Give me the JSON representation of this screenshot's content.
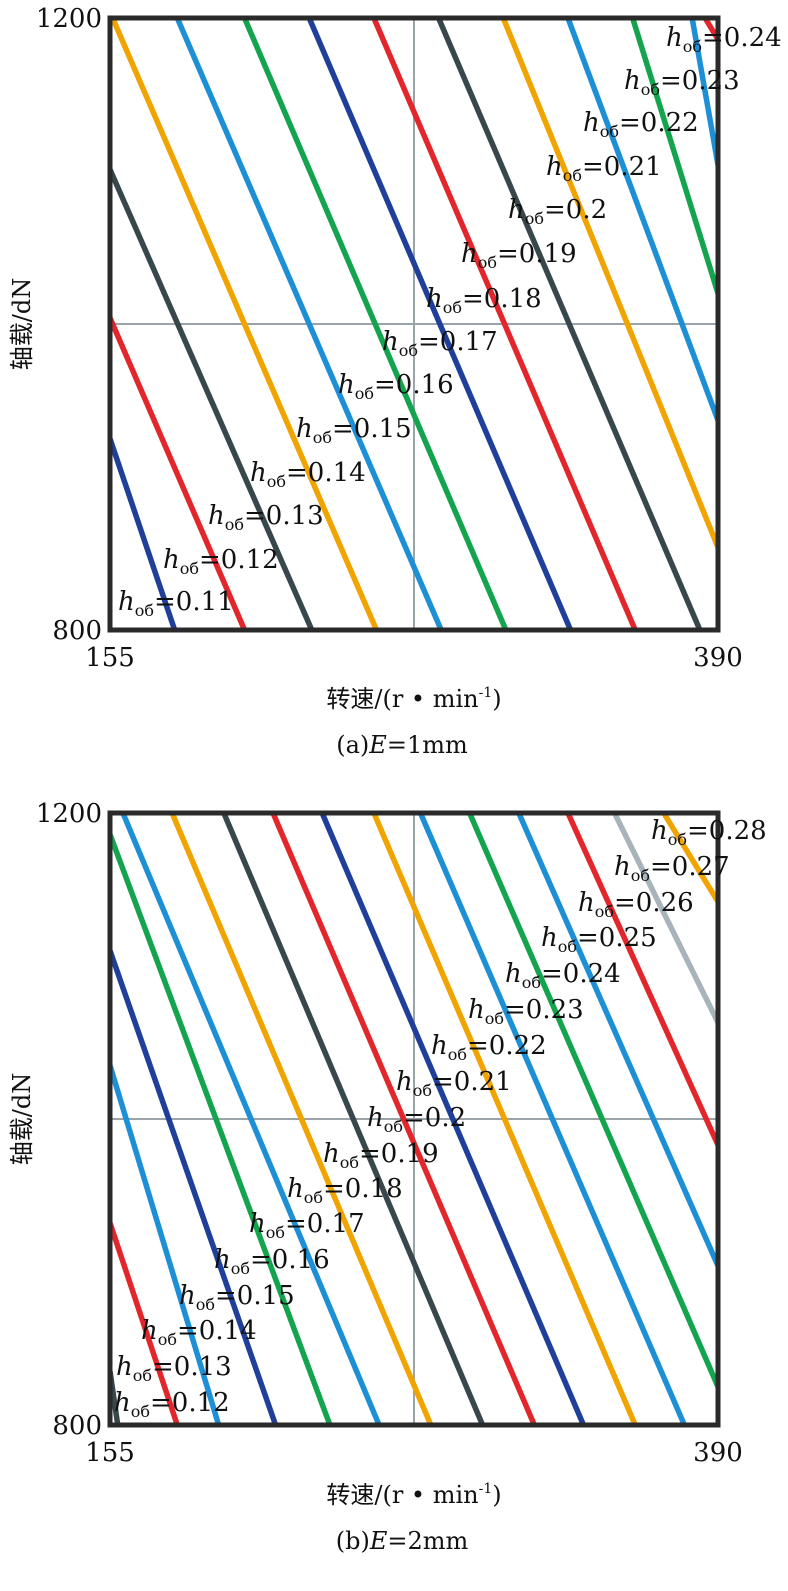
{
  "colors": {
    "frame": "#2a2a2a",
    "grid": "#9aa3a8",
    "blue": "#1f3f9b",
    "cyan": "#1d8fd6",
    "green": "#14a44d",
    "red": "#e3262b",
    "orange": "#f1a300",
    "dark": "#38474c",
    "silver": "#a8b4bb"
  },
  "chart_data": [
    {
      "type": "line",
      "subplot": "(a)",
      "caption_prefix": "(a)",
      "caption_var": "E",
      "caption_value": "=1mm",
      "xlabel": "转速/(r • min",
      "xlabel_sup": "-1",
      "xlabel_end": ")",
      "ylabel": "轴载/dN",
      "xlim": [
        155,
        390
      ],
      "ylim": [
        800,
        1200
      ],
      "xticks": [
        "155",
        "390"
      ],
      "yticks": [
        "800",
        "1200"
      ],
      "grid": true,
      "label_prefix": "h",
      "label_sub": "об",
      "series": [
        {
          "name": "=0.11",
          "color": "blue",
          "x": [
            155,
            180
          ],
          "y": [
            925,
            800
          ]
        },
        {
          "name": "=0.12",
          "color": "red",
          "x": [
            155,
            207
          ],
          "y": [
            1004,
            800
          ]
        },
        {
          "name": "=0.13",
          "color": "dark",
          "x": [
            155,
            233
          ],
          "y": [
            1101,
            800
          ]
        },
        {
          "name": "=0.14",
          "color": "orange",
          "x": [
            156,
            258
          ],
          "y": [
            1200,
            800
          ]
        },
        {
          "name": "=0.15",
          "color": "cyan",
          "x": [
            181,
            283
          ],
          "y": [
            1200,
            800
          ]
        },
        {
          "name": "=0.16",
          "color": "green",
          "x": [
            207,
            308
          ],
          "y": [
            1200,
            800
          ]
        },
        {
          "name": "=0.17",
          "color": "blue",
          "x": [
            232,
            333
          ],
          "y": [
            1200,
            800
          ]
        },
        {
          "name": "=0.18",
          "color": "red",
          "x": [
            257,
            358
          ],
          "y": [
            1200,
            800
          ]
        },
        {
          "name": "=0.19",
          "color": "dark",
          "x": [
            282,
            383
          ],
          "y": [
            1200,
            800
          ]
        },
        {
          "name": "=0.2",
          "color": "orange",
          "x": [
            307,
            390
          ],
          "y": [
            1200,
            854
          ]
        },
        {
          "name": "=0.21",
          "color": "cyan",
          "x": [
            332,
            390
          ],
          "y": [
            1200,
            937
          ]
        },
        {
          "name": "=0.22",
          "color": "green",
          "x": [
            357,
            390
          ],
          "y": [
            1200,
            1020
          ]
        },
        {
          "name": "=0.23",
          "color": "cyan",
          "x": [
            380,
            390
          ],
          "y": [
            1200,
            1104
          ]
        },
        {
          "name": "=0.24",
          "color": "red",
          "x": [
            385,
            390
          ],
          "y": [
            1200,
            1186
          ]
        }
      ]
    },
    {
      "type": "line",
      "subplot": "(b)",
      "caption_prefix": "(b)",
      "caption_var": "E",
      "caption_value": "=2mm",
      "xlabel": "转速/(r • min",
      "xlabel_sup": "-1",
      "xlabel_end": ")",
      "ylabel": "轴载/dN",
      "xlim": [
        155,
        390
      ],
      "ylim": [
        800,
        1200
      ],
      "xticks": [
        "155",
        "390"
      ],
      "yticks": [
        "800",
        "1200"
      ],
      "grid": true,
      "label_prefix": "h",
      "label_sub": "об",
      "series": [
        {
          "name": "=0.12",
          "color": "dark",
          "x": [
            155,
            158
          ],
          "y": [
            835,
            800
          ]
        },
        {
          "name": "=0.13",
          "color": "red",
          "x": [
            155,
            181
          ],
          "y": [
            932,
            800
          ]
        },
        {
          "name": "=0.14",
          "color": "cyan",
          "x": [
            155,
            197
          ],
          "y": [
            1035,
            800
          ]
        },
        {
          "name": "=0.15",
          "color": "blue",
          "x": [
            155,
            219
          ],
          "y": [
            1110,
            800
          ]
        },
        {
          "name": "=0.16",
          "color": "green",
          "x": [
            155,
            240
          ],
          "y": [
            1186,
            800
          ]
        },
        {
          "name": "=0.17",
          "color": "cyan",
          "x": [
            160,
            259
          ],
          "y": [
            1200,
            800
          ]
        },
        {
          "name": "=0.18",
          "color": "orange",
          "x": [
            179,
            279
          ],
          "y": [
            1200,
            800
          ]
        },
        {
          "name": "=0.19",
          "color": "dark",
          "x": [
            199,
            299
          ],
          "y": [
            1200,
            800
          ]
        },
        {
          "name": "=0.2",
          "color": "red",
          "x": [
            218,
            319
          ],
          "y": [
            1200,
            800
          ]
        },
        {
          "name": "=0.21",
          "color": "blue",
          "x": [
            237,
            338
          ],
          "y": [
            1200,
            800
          ]
        },
        {
          "name": "=0.22",
          "color": "orange",
          "x": [
            257,
            358
          ],
          "y": [
            1200,
            800
          ]
        },
        {
          "name": "=0.23",
          "color": "cyan",
          "x": [
            275,
            377
          ],
          "y": [
            1200,
            800
          ]
        },
        {
          "name": "=0.24",
          "color": "green",
          "x": [
            294,
            390
          ],
          "y": [
            1200,
            825
          ]
        },
        {
          "name": "=0.25",
          "color": "cyan",
          "x": [
            313,
            390
          ],
          "y": [
            1200,
            904
          ]
        },
        {
          "name": "=0.26",
          "color": "red",
          "x": [
            332,
            390
          ],
          "y": [
            1200,
            983
          ]
        },
        {
          "name": "=0.27",
          "color": "silver",
          "x": [
            350,
            390
          ],
          "y": [
            1200,
            1063
          ]
        },
        {
          "name": "=0.28",
          "color": "orange",
          "x": [
            369,
            390
          ],
          "y": [
            1200,
            1142
          ]
        }
      ]
    }
  ]
}
